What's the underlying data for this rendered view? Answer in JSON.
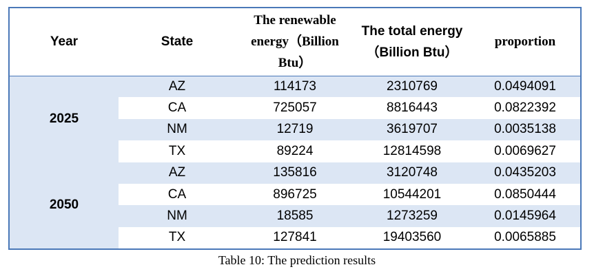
{
  "table": {
    "headers": {
      "year": "Year",
      "state": "State",
      "renewable": "The renewable energy（Billion Btu）",
      "total": "The total energy（Billion Btu）",
      "proportion": "proportion"
    },
    "groups": [
      {
        "year": "2025",
        "rows": [
          {
            "state": "AZ",
            "renewable": "114173",
            "total": "2310769",
            "proportion": "0.0494091"
          },
          {
            "state": "CA",
            "renewable": "725057",
            "total": "8816443",
            "proportion": "0.0822392"
          },
          {
            "state": "NM",
            "renewable": "12719",
            "total": "3619707",
            "proportion": "0.0035138"
          },
          {
            "state": "TX",
            "renewable": "89224",
            "total": "12814598",
            "proportion": "0.0069627"
          }
        ]
      },
      {
        "year": "2050",
        "rows": [
          {
            "state": "AZ",
            "renewable": "135816",
            "total": "3120748",
            "proportion": "0.0435203"
          },
          {
            "state": "CA",
            "renewable": "896725",
            "total": "10544201",
            "proportion": "0.0850444"
          },
          {
            "state": "NM",
            "renewable": "18585",
            "total": "1273259",
            "proportion": "0.0145964"
          },
          {
            "state": "TX",
            "renewable": "127841",
            "total": "19403560",
            "proportion": "0.0065885"
          }
        ]
      }
    ]
  },
  "caption": "Table 10: The prediction results",
  "colors": {
    "border": "#4a78b8",
    "shade": "#dce6f4"
  }
}
